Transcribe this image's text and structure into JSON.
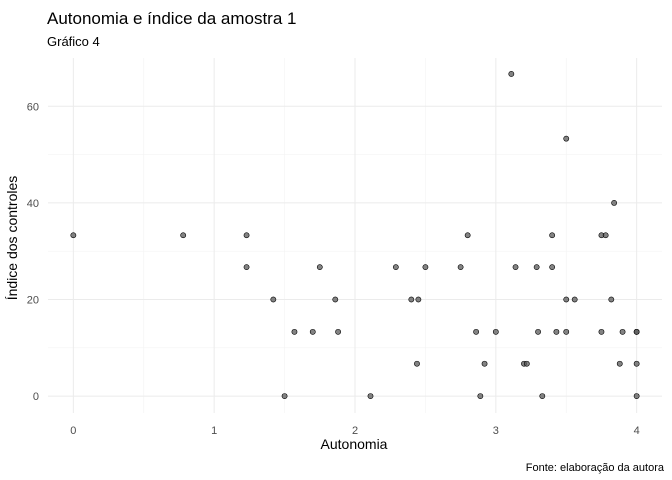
{
  "chart_data": {
    "type": "scatter",
    "title": "Autonomia e índice da amostra 1",
    "subtitle": "Gráfico 4",
    "xlabel": "Autonomia",
    "ylabel": "Índice dos controles",
    "caption": "Fonte: elaboração da autora",
    "xlim": [
      -0.18,
      4.18
    ],
    "ylim": [
      -3.5,
      70
    ],
    "x_ticks": [
      0,
      1,
      2,
      3,
      4
    ],
    "y_ticks": [
      0,
      20,
      40,
      60
    ],
    "x_tick_labels": [
      "0",
      "1",
      "2",
      "3",
      "4"
    ],
    "y_tick_labels": [
      "0",
      "20",
      "40",
      "60"
    ],
    "grid": true,
    "legend": "none",
    "points": [
      {
        "x": 0.0,
        "y": 33.3
      },
      {
        "x": 0.78,
        "y": 33.3
      },
      {
        "x": 1.23,
        "y": 33.3
      },
      {
        "x": 1.23,
        "y": 26.7
      },
      {
        "x": 1.42,
        "y": 20.0
      },
      {
        "x": 1.5,
        "y": 0.0
      },
      {
        "x": 1.57,
        "y": 13.3
      },
      {
        "x": 1.7,
        "y": 13.3
      },
      {
        "x": 1.75,
        "y": 26.7
      },
      {
        "x": 1.86,
        "y": 20.0
      },
      {
        "x": 1.88,
        "y": 13.3
      },
      {
        "x": 2.11,
        "y": 0.0
      },
      {
        "x": 2.29,
        "y": 26.7
      },
      {
        "x": 2.4,
        "y": 20.0
      },
      {
        "x": 2.44,
        "y": 6.7
      },
      {
        "x": 2.45,
        "y": 20.0
      },
      {
        "x": 2.5,
        "y": 26.7
      },
      {
        "x": 2.75,
        "y": 26.7
      },
      {
        "x": 2.8,
        "y": 33.3
      },
      {
        "x": 2.86,
        "y": 13.3
      },
      {
        "x": 2.89,
        "y": 0.0
      },
      {
        "x": 2.92,
        "y": 6.7
      },
      {
        "x": 3.0,
        "y": 13.3
      },
      {
        "x": 3.11,
        "y": 66.7
      },
      {
        "x": 3.14,
        "y": 26.7
      },
      {
        "x": 3.2,
        "y": 6.7
      },
      {
        "x": 3.22,
        "y": 6.7
      },
      {
        "x": 3.29,
        "y": 26.7
      },
      {
        "x": 3.3,
        "y": 13.3
      },
      {
        "x": 3.33,
        "y": 0.0
      },
      {
        "x": 3.4,
        "y": 26.7
      },
      {
        "x": 3.4,
        "y": 33.3
      },
      {
        "x": 3.43,
        "y": 13.3
      },
      {
        "x": 3.5,
        "y": 53.3
      },
      {
        "x": 3.5,
        "y": 20.0
      },
      {
        "x": 3.5,
        "y": 13.3
      },
      {
        "x": 3.56,
        "y": 20.0
      },
      {
        "x": 3.75,
        "y": 33.3
      },
      {
        "x": 3.75,
        "y": 13.3
      },
      {
        "x": 3.78,
        "y": 33.3
      },
      {
        "x": 3.82,
        "y": 20.0
      },
      {
        "x": 3.84,
        "y": 40.0
      },
      {
        "x": 3.88,
        "y": 6.7
      },
      {
        "x": 3.9,
        "y": 13.3
      },
      {
        "x": 4.0,
        "y": 13.3
      },
      {
        "x": 4.0,
        "y": 13.3
      },
      {
        "x": 4.0,
        "y": 6.7
      },
      {
        "x": 4.0,
        "y": 0.0
      }
    ]
  }
}
